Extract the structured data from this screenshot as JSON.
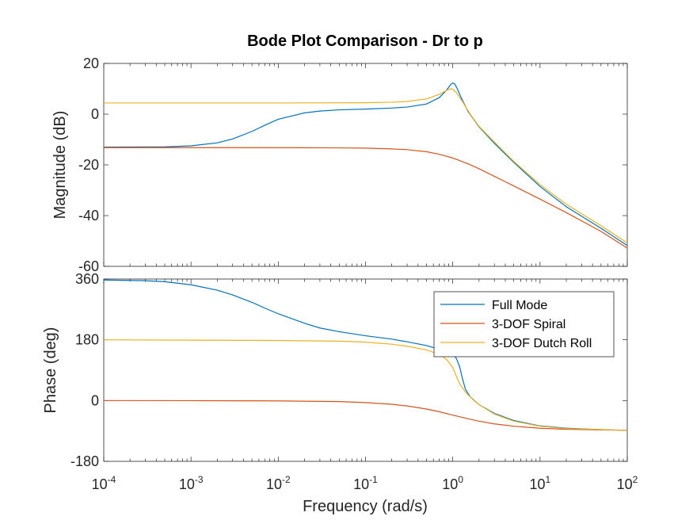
{
  "chart_data": {
    "type": "line",
    "title": "Bode Plot Comparison - Dr to p",
    "xlabel": "Frequency  (rad/s)",
    "xscale": "log",
    "xlim": [
      0.0001,
      100
    ],
    "x_ticks": [
      {
        "base": "10",
        "exp": "-4"
      },
      {
        "base": "10",
        "exp": "-3"
      },
      {
        "base": "10",
        "exp": "-2"
      },
      {
        "base": "10",
        "exp": "-1"
      },
      {
        "base": "10",
        "exp": "0"
      },
      {
        "base": "10",
        "exp": "1"
      },
      {
        "base": "10",
        "exp": "2"
      }
    ],
    "legend_position": "top-right",
    "legend_panel": "phase",
    "grid": false,
    "panels": [
      {
        "id": "magnitude",
        "ylabel": "Magnitude (dB)",
        "ylim": [
          -60,
          20
        ],
        "y_ticks": [
          "20",
          "0",
          "-20",
          "-40",
          "-60"
        ],
        "series": [
          {
            "name": "Full Mode",
            "color": "#0072BD",
            "points": [
              [
                0.0001,
                -13
              ],
              [
                0.0005,
                -12.9
              ],
              [
                0.001,
                -12.5
              ],
              [
                0.002,
                -11.3
              ],
              [
                0.003,
                -9.8
              ],
              [
                0.005,
                -6.8
              ],
              [
                0.007,
                -4.4
              ],
              [
                0.01,
                -2.0
              ],
              [
                0.02,
                0.5
              ],
              [
                0.03,
                1.2
              ],
              [
                0.05,
                1.7
              ],
              [
                0.1,
                2.0
              ],
              [
                0.2,
                2.4
              ],
              [
                0.3,
                2.8
              ],
              [
                0.5,
                4.0
              ],
              [
                0.7,
                6.5
              ],
              [
                0.85,
                9.5
              ],
              [
                0.95,
                11.7
              ],
              [
                1.0,
                12.3
              ],
              [
                1.05,
                12.0
              ],
              [
                1.12,
                10.2
              ],
              [
                1.25,
                6.5
              ],
              [
                1.5,
                1.0
              ],
              [
                2,
                -5.0
              ],
              [
                3,
                -11.5
              ],
              [
                5,
                -19.0
              ],
              [
                10,
                -28.5
              ],
              [
                20,
                -36.5
              ],
              [
                50,
                -45.0
              ],
              [
                100,
                -51.8
              ]
            ]
          },
          {
            "name": "3-DOF Spiral",
            "color": "#D95319",
            "points": [
              [
                0.0001,
                -13.2
              ],
              [
                0.001,
                -13.2
              ],
              [
                0.01,
                -13.2
              ],
              [
                0.05,
                -13.3
              ],
              [
                0.1,
                -13.4
              ],
              [
                0.2,
                -13.7
              ],
              [
                0.3,
                -14.0
              ],
              [
                0.5,
                -14.8
              ],
              [
                0.7,
                -15.8
              ],
              [
                1.0,
                -17.3
              ],
              [
                1.5,
                -19.6
              ],
              [
                2,
                -21.5
              ],
              [
                3,
                -24.5
              ],
              [
                5,
                -28.3
              ],
              [
                10,
                -33.5
              ],
              [
                20,
                -38.8
              ],
              [
                50,
                -46.2
              ],
              [
                100,
                -52.8
              ]
            ]
          },
          {
            "name": "3-DOF Dutch Roll",
            "color": "#EDB120",
            "points": [
              [
                0.0001,
                4.4
              ],
              [
                0.001,
                4.4
              ],
              [
                0.01,
                4.4
              ],
              [
                0.1,
                4.5
              ],
              [
                0.2,
                4.7
              ],
              [
                0.3,
                5.0
              ],
              [
                0.5,
                6.0
              ],
              [
                0.7,
                7.8
              ],
              [
                0.85,
                9.4
              ],
              [
                0.95,
                10.0
              ],
              [
                1.0,
                9.8
              ],
              [
                1.1,
                8.5
              ],
              [
                1.3,
                4.8
              ],
              [
                1.6,
                -0.2
              ],
              [
                2,
                -4.8
              ],
              [
                3,
                -11.0
              ],
              [
                5,
                -18.6
              ],
              [
                10,
                -27.8
              ],
              [
                20,
                -35.5
              ],
              [
                50,
                -44.0
              ],
              [
                100,
                -50.8
              ]
            ]
          }
        ]
      },
      {
        "id": "phase",
        "ylabel": "Phase (deg)",
        "ylim": [
          -180,
          360
        ],
        "y_ticks": [
          "360",
          "180",
          "0",
          "-180"
        ],
        "series": [
          {
            "name": "Full Mode",
            "color": "#0072BD",
            "points": [
              [
                0.0001,
                357
              ],
              [
                0.0003,
                355
              ],
              [
                0.0005,
                352
              ],
              [
                0.001,
                343
              ],
              [
                0.002,
                327
              ],
              [
                0.003,
                313
              ],
              [
                0.005,
                291
              ],
              [
                0.007,
                274
              ],
              [
                0.01,
                257
              ],
              [
                0.02,
                229
              ],
              [
                0.03,
                215
              ],
              [
                0.05,
                204
              ],
              [
                0.1,
                192
              ],
              [
                0.2,
                182
              ],
              [
                0.3,
                174
              ],
              [
                0.5,
                163
              ],
              [
                0.7,
                152
              ],
              [
                0.85,
                145
              ],
              [
                1.0,
                138
              ],
              [
                1.1,
                125
              ],
              [
                1.2,
                100
              ],
              [
                1.3,
                62
              ],
              [
                1.4,
                33
              ],
              [
                1.6,
                10
              ],
              [
                2,
                -12
              ],
              [
                3,
                -38
              ],
              [
                5,
                -59
              ],
              [
                10,
                -75
              ],
              [
                20,
                -82
              ],
              [
                50,
                -86
              ],
              [
                100,
                -88
              ]
            ]
          },
          {
            "name": "3-DOF Spiral",
            "color": "#D95319",
            "points": [
              [
                0.0001,
                0
              ],
              [
                0.001,
                -0.3
              ],
              [
                0.01,
                -1
              ],
              [
                0.05,
                -3
              ],
              [
                0.1,
                -6
              ],
              [
                0.2,
                -11
              ],
              [
                0.3,
                -16
              ],
              [
                0.5,
                -25
              ],
              [
                0.7,
                -33
              ],
              [
                1.0,
                -43
              ],
              [
                1.5,
                -54
              ],
              [
                2,
                -61
              ],
              [
                3,
                -69
              ],
              [
                5,
                -76
              ],
              [
                10,
                -82
              ],
              [
                20,
                -85
              ],
              [
                50,
                -87
              ],
              [
                100,
                -88
              ]
            ]
          },
          {
            "name": "3-DOF Dutch Roll",
            "color": "#EDB120",
            "points": [
              [
                0.0001,
                180
              ],
              [
                0.001,
                179
              ],
              [
                0.01,
                178
              ],
              [
                0.05,
                176
              ],
              [
                0.1,
                173
              ],
              [
                0.2,
                167
              ],
              [
                0.3,
                161
              ],
              [
                0.5,
                150
              ],
              [
                0.7,
                137
              ],
              [
                0.85,
                122
              ],
              [
                1.0,
                98
              ],
              [
                1.1,
                72
              ],
              [
                1.2,
                50
              ],
              [
                1.4,
                25
              ],
              [
                1.7,
                3
              ],
              [
                2,
                -12
              ],
              [
                3,
                -40
              ],
              [
                5,
                -61
              ],
              [
                10,
                -76
              ],
              [
                20,
                -83
              ],
              [
                50,
                -86
              ],
              [
                100,
                -88
              ]
            ]
          }
        ]
      }
    ]
  }
}
